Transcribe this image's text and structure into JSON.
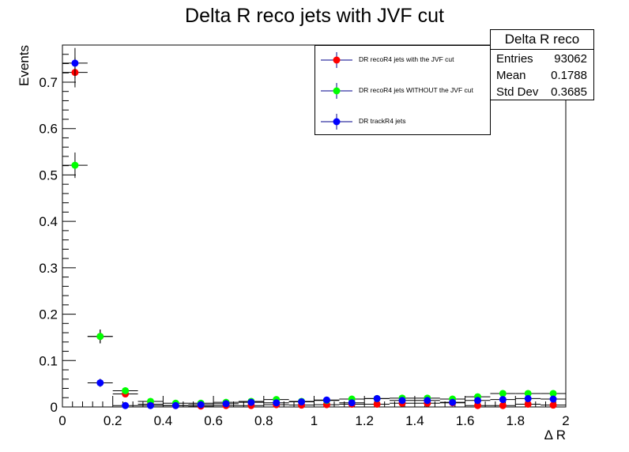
{
  "chart_data": {
    "type": "scatter",
    "title": "Delta R reco jets with JVF cut",
    "xlabel": "Δ R",
    "ylabel": "Events",
    "xlim": [
      0,
      2
    ],
    "ylim": [
      0,
      0.78
    ],
    "x_ticks": [
      "0",
      "0.2",
      "0.4",
      "0.6",
      "0.8",
      "1",
      "1.2",
      "1.4",
      "1.6",
      "1.8",
      "2"
    ],
    "y_ticks": [
      "0",
      "0.1",
      "0.2",
      "0.3",
      "0.4",
      "0.5",
      "0.6",
      "0.7"
    ],
    "bin_width": 0.1,
    "x": [
      0.05,
      0.15,
      0.25,
      0.35,
      0.45,
      0.55,
      0.65,
      0.75,
      0.85,
      0.95,
      1.05,
      1.15,
      1.25,
      1.35,
      1.45,
      1.55,
      1.65,
      1.75,
      1.85,
      1.95
    ],
    "series": [
      {
        "name": "DR recoR4 jets with the JVF cut",
        "color": "#ff0000",
        "values": [
          0.721,
          0.152,
          0.028,
          0.006,
          0.003,
          0.002,
          0.003,
          0.003,
          0.005,
          0.004,
          0.005,
          0.006,
          0.006,
          0.008,
          0.008,
          0.009,
          0.003,
          0.003,
          0.006,
          0.004
        ]
      },
      {
        "name": "DR recoR4 jets WITHOUT the JVF cut",
        "color": "#00ff00",
        "values": [
          0.521,
          0.152,
          0.035,
          0.012,
          0.008,
          0.008,
          0.01,
          0.012,
          0.016,
          0.012,
          0.014,
          0.017,
          0.018,
          0.019,
          0.019,
          0.017,
          0.022,
          0.029,
          0.029,
          0.029
        ]
      },
      {
        "name": "DR trackR4 jets",
        "color": "#0000ff",
        "values": [
          0.741,
          0.052,
          0.003,
          0.003,
          0.003,
          0.005,
          0.007,
          0.01,
          0.009,
          0.011,
          0.015,
          0.009,
          0.018,
          0.014,
          0.014,
          0.01,
          0.014,
          0.016,
          0.018,
          0.017
        ]
      }
    ],
    "legend_position": "top-right",
    "stats": {
      "title": "Delta R reco",
      "rows": [
        {
          "label": "Entries",
          "value": "93062"
        },
        {
          "label": "Mean",
          "value": "0.1788"
        },
        {
          "label": "Std Dev",
          "value": "0.3685"
        }
      ]
    }
  }
}
